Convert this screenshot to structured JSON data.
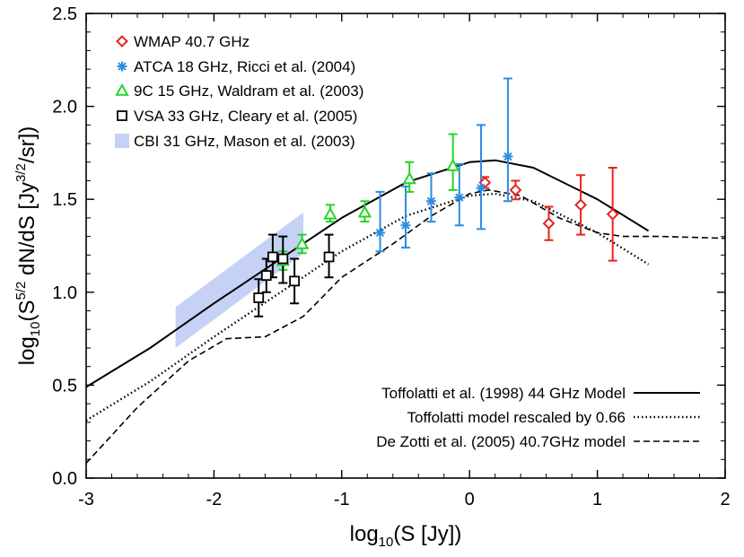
{
  "chart_data": {
    "type": "scatter",
    "xlim": [
      -3,
      2
    ],
    "ylim": [
      0,
      2.5
    ],
    "xticks": [
      {
        "value": -3,
        "label": "-3"
      },
      {
        "value": -2,
        "label": "-2"
      },
      {
        "value": -1,
        "label": "-1"
      },
      {
        "value": 0,
        "label": "0"
      },
      {
        "value": 1,
        "label": "1"
      },
      {
        "value": 2,
        "label": "2"
      }
    ],
    "yticks": [
      {
        "value": 0.0,
        "label": "0.0"
      },
      {
        "value": 0.5,
        "label": "0.5"
      },
      {
        "value": 1.0,
        "label": "1.0"
      },
      {
        "value": 1.5,
        "label": "1.5"
      },
      {
        "value": 2.0,
        "label": "2.0"
      },
      {
        "value": 2.5,
        "label": "2.5"
      }
    ],
    "xlabel": {
      "prefix": "log",
      "sub": "10",
      "rest": "(S [Jy])"
    },
    "ylabel": {
      "p1": "log",
      "s1": "10",
      "p2": "(S",
      "sup1": "5/2",
      "p3": " dN/dS [Jy",
      "sup2": "3/2",
      "p4": "/sr])"
    },
    "series": [
      {
        "name": "WMAP 40.7 GHz",
        "marker": "diamond",
        "color": "#e8231f",
        "points": [
          {
            "x": 0.12,
            "y": 1.59,
            "lo": 1.56,
            "hi": 1.62
          },
          {
            "x": 0.36,
            "y": 1.55,
            "lo": 1.5,
            "hi": 1.6
          },
          {
            "x": 0.62,
            "y": 1.37,
            "lo": 1.28,
            "hi": 1.46
          },
          {
            "x": 0.87,
            "y": 1.47,
            "lo": 1.31,
            "hi": 1.63
          },
          {
            "x": 1.12,
            "y": 1.42,
            "lo": 1.17,
            "hi": 1.67
          }
        ]
      },
      {
        "name": "ATCA 18 GHz, Ricci et al. (2004)",
        "marker": "asterisk",
        "color": "#2b8de3",
        "points": [
          {
            "x": -0.7,
            "y": 1.32,
            "lo": 1.22,
            "hi": 1.54
          },
          {
            "x": -0.5,
            "y": 1.36,
            "lo": 1.24,
            "hi": 1.57
          },
          {
            "x": -0.3,
            "y": 1.49,
            "lo": 1.38,
            "hi": 1.64
          },
          {
            "x": -0.08,
            "y": 1.51,
            "lo": 1.36,
            "hi": 1.69
          },
          {
            "x": 0.09,
            "y": 1.56,
            "lo": 1.34,
            "hi": 1.9
          },
          {
            "x": 0.3,
            "y": 1.73,
            "lo": 1.49,
            "hi": 2.15
          }
        ]
      },
      {
        "name": "9C 15 GHz, Waldram et al. (2003)",
        "marker": "triangle",
        "color": "#25d427",
        "points": [
          {
            "x": -1.46,
            "y": 1.17,
            "lo": 1.12,
            "hi": 1.22
          },
          {
            "x": -1.31,
            "y": 1.26,
            "lo": 1.21,
            "hi": 1.31
          },
          {
            "x": -1.09,
            "y": 1.42,
            "lo": 1.38,
            "hi": 1.47
          },
          {
            "x": -0.82,
            "y": 1.43,
            "lo": 1.38,
            "hi": 1.49
          },
          {
            "x": -0.47,
            "y": 1.61,
            "lo": 1.54,
            "hi": 1.7
          },
          {
            "x": -0.13,
            "y": 1.68,
            "lo": 1.55,
            "hi": 1.85
          }
        ]
      },
      {
        "name": "VSA 33 GHz, Cleary et al. (2005)",
        "marker": "square",
        "color": "#000000",
        "points": [
          {
            "x": -1.65,
            "y": 0.97,
            "lo": 0.87,
            "hi": 1.07
          },
          {
            "x": -1.59,
            "y": 1.09,
            "lo": 1.0,
            "hi": 1.18
          },
          {
            "x": -1.54,
            "y": 1.19,
            "lo": 1.08,
            "hi": 1.31
          },
          {
            "x": -1.46,
            "y": 1.18,
            "lo": 1.05,
            "hi": 1.3
          },
          {
            "x": -1.37,
            "y": 1.06,
            "lo": 0.94,
            "hi": 1.18
          },
          {
            "x": -1.1,
            "y": 1.19,
            "lo": 1.08,
            "hi": 1.31
          }
        ]
      },
      {
        "name": "CBI 31 GHz, Mason et al. (2003)",
        "marker": "band",
        "color": "#c5d1f5",
        "band": [
          {
            "x": -2.3,
            "lo": 0.7,
            "hi": 0.92
          },
          {
            "x": -1.3,
            "lo": 1.21,
            "hi": 1.43
          }
        ]
      }
    ],
    "models": [
      {
        "name": "Toffolatti et al. (1998) 44 GHz Model",
        "style": "solid",
        "x": [
          -3.0,
          -2.5,
          -2.0,
          -1.5,
          -1.0,
          -0.5,
          0.0,
          0.2,
          0.5,
          1.0,
          1.4
        ],
        "y": [
          0.49,
          0.7,
          0.94,
          1.17,
          1.4,
          1.59,
          1.7,
          1.71,
          1.67,
          1.5,
          1.33
        ]
      },
      {
        "name": "Toffolatti model rescaled by 0.66",
        "style": "dotted",
        "x": [
          -3.0,
          -2.5,
          -2.0,
          -1.5,
          -1.0,
          -0.5,
          0.0,
          0.2,
          0.5,
          1.0,
          1.4
        ],
        "y": [
          0.31,
          0.52,
          0.76,
          0.99,
          1.22,
          1.41,
          1.52,
          1.53,
          1.49,
          1.32,
          1.15
        ]
      },
      {
        "name": "De Zotti et al. (2005) 40.7GHz model",
        "style": "dashed",
        "x": [
          -3.0,
          -2.6,
          -2.2,
          -1.9,
          -1.6,
          -1.3,
          -1.0,
          -0.6,
          -0.3,
          0.0,
          0.15,
          0.4,
          0.7,
          1.0,
          1.2,
          1.5,
          2.0
        ],
        "y": [
          0.08,
          0.38,
          0.63,
          0.75,
          0.76,
          0.87,
          1.08,
          1.26,
          1.41,
          1.53,
          1.55,
          1.52,
          1.4,
          1.32,
          1.3,
          1.3,
          1.29
        ]
      }
    ],
    "legend_positions": "top-left (data series), bottom-right (models)"
  }
}
